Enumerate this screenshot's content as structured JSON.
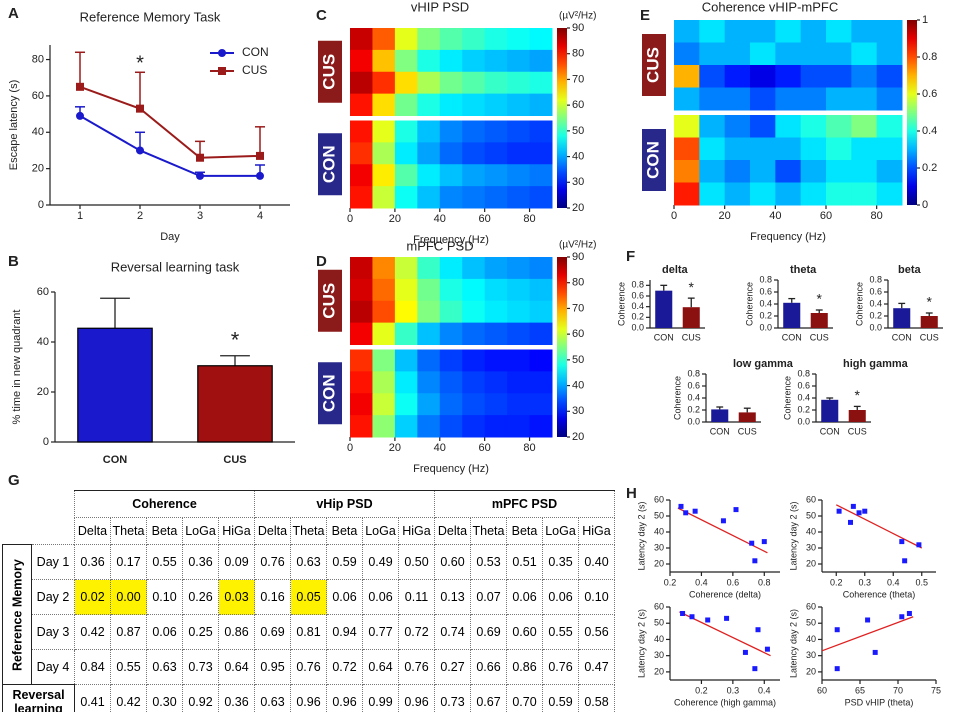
{
  "chart_data": [
    {
      "type": "line",
      "panel": "A",
      "title": "Reference Memory Task",
      "xlabel": "Day",
      "ylabel": "Escape latency (s)",
      "x": [
        1,
        2,
        3,
        4
      ],
      "xlim": [
        0.5,
        4.5
      ],
      "xticks": [
        1,
        2,
        3,
        4
      ],
      "ylim": [
        0,
        88
      ],
      "yticks": [
        0,
        20,
        40,
        60,
        80
      ],
      "legend": "upper right",
      "annotation": "*",
      "series": [
        {
          "name": "CON",
          "color": "#1a1acc",
          "marker": "circle",
          "values": [
            49,
            30,
            16,
            16
          ],
          "errors": [
            5,
            10,
            2,
            6
          ]
        },
        {
          "name": "CUS",
          "color": "#9b1b1b",
          "marker": "square",
          "values": [
            65,
            53,
            26,
            27
          ],
          "errors": [
            19,
            20,
            9,
            16
          ]
        }
      ]
    },
    {
      "type": "bar",
      "panel": "B",
      "title": "Reversal learning task",
      "ylabel": "% time in new quadrant",
      "categories": [
        "CON",
        "CUS"
      ],
      "values": [
        45.5,
        30.5
      ],
      "errors": [
        12,
        4
      ],
      "colors": [
        "#1a1acc",
        "#a01010"
      ],
      "edgecolor": "#000000",
      "ylim": [
        0,
        60
      ],
      "yticks": [
        0,
        20,
        40,
        60
      ],
      "annotation": "*"
    },
    {
      "type": "heatmap",
      "panel": "C",
      "title": "vHIP PSD",
      "xlabel": "Frequency (Hz)",
      "colormap": "jet",
      "clim": [
        20,
        90
      ],
      "cticks": [
        20,
        30,
        40,
        50,
        60,
        70,
        80,
        90
      ],
      "cbar_label": "(µV²/Hz)",
      "xlim": [
        0,
        90
      ],
      "xticks": [
        0,
        20,
        40,
        60,
        80
      ],
      "bins": [
        0,
        10,
        20,
        30,
        40,
        50,
        60,
        70,
        80,
        90
      ],
      "groups": [
        {
          "name": "CUS",
          "color": "#8b1a1a",
          "rows": [
            [
              85,
              75,
              62,
              55,
              52,
              50,
              48,
              47,
              46
            ],
            [
              82,
              68,
              55,
              48,
              45,
              43,
              42,
              41,
              40
            ],
            [
              86,
              78,
              66,
              58,
              54,
              52,
              50,
              49,
              48
            ],
            [
              80,
              66,
              54,
              48,
              45,
              44,
              43,
              42,
              41
            ]
          ]
        },
        {
          "name": "CON",
          "color": "#28288a",
          "rows": [
            [
              80,
              62,
              48,
              42,
              38,
              36,
              35,
              34,
              33
            ],
            [
              78,
              58,
              45,
              40,
              36,
              34,
              33,
              32,
              32
            ],
            [
              82,
              65,
              52,
              45,
              42,
              40,
              39,
              38,
              37
            ],
            [
              80,
              60,
              47,
              42,
              38,
              37,
              36,
              35,
              34
            ]
          ]
        }
      ]
    },
    {
      "type": "heatmap",
      "panel": "D",
      "title": "mPFC PSD",
      "xlabel": "Frequency (Hz)",
      "colormap": "jet",
      "clim": [
        20,
        90
      ],
      "cticks": [
        20,
        30,
        40,
        50,
        60,
        70,
        80,
        90
      ],
      "cbar_label": "(µV²/Hz)",
      "xlim": [
        0,
        90
      ],
      "xticks": [
        0,
        20,
        40,
        60,
        80
      ],
      "bins": [
        0,
        10,
        20,
        30,
        40,
        50,
        60,
        70,
        80,
        90
      ],
      "groups": [
        {
          "name": "CUS",
          "color": "#8b1a1a",
          "rows": [
            [
              85,
              72,
              60,
              50,
              45,
              42,
              40,
              39,
              38
            ],
            [
              84,
              74,
              62,
              54,
              48,
              46,
              44,
              43,
              42
            ],
            [
              86,
              76,
              64,
              55,
              50,
              47,
              45,
              44,
              43
            ],
            [
              82,
              62,
              50,
              42,
              38,
              36,
              35,
              34,
              33
            ]
          ]
        },
        {
          "name": "CON",
          "color": "#28288a",
          "rows": [
            [
              78,
              55,
              42,
              36,
              33,
              31,
              30,
              30,
              29
            ],
            [
              80,
              58,
              45,
              38,
              35,
              33,
              32,
              31,
              31
            ],
            [
              82,
              60,
              47,
              40,
              36,
              34,
              33,
              32,
              32
            ],
            [
              80,
              56,
              43,
              37,
              34,
              32,
              31,
              31,
              30
            ]
          ]
        }
      ]
    },
    {
      "type": "heatmap",
      "panel": "E",
      "title": "Coherence vHIP-mPFC",
      "xlabel": "Frequency (Hz)",
      "colormap": "jet",
      "clim": [
        0,
        1
      ],
      "cticks": [
        0,
        0.2,
        0.4,
        0.6,
        0.8,
        1
      ],
      "xlim": [
        0,
        90
      ],
      "xticks": [
        0,
        20,
        40,
        60,
        80
      ],
      "bins": [
        0,
        10,
        20,
        30,
        40,
        50,
        60,
        70,
        80,
        90
      ],
      "groups": [
        {
          "name": "CUS",
          "color": "#8b1a1a",
          "rows": [
            [
              0.3,
              0.35,
              0.3,
              0.3,
              0.35,
              0.3,
              0.35,
              0.3,
              0.3
            ],
            [
              0.25,
              0.3,
              0.3,
              0.35,
              0.3,
              0.3,
              0.3,
              0.35,
              0.3
            ],
            [
              0.7,
              0.2,
              0.15,
              0.1,
              0.15,
              0.2,
              0.2,
              0.25,
              0.2
            ],
            [
              0.3,
              0.25,
              0.25,
              0.2,
              0.25,
              0.25,
              0.3,
              0.3,
              0.25
            ]
          ]
        },
        {
          "name": "CON",
          "color": "#28288a",
          "rows": [
            [
              0.6,
              0.3,
              0.25,
              0.2,
              0.35,
              0.4,
              0.45,
              0.5,
              0.4
            ],
            [
              0.8,
              0.35,
              0.3,
              0.3,
              0.3,
              0.35,
              0.4,
              0.35,
              0.35
            ],
            [
              0.75,
              0.3,
              0.25,
              0.3,
              0.2,
              0.3,
              0.35,
              0.35,
              0.3
            ],
            [
              0.85,
              0.35,
              0.3,
              0.35,
              0.3,
              0.35,
              0.4,
              0.4,
              0.35
            ]
          ]
        }
      ]
    },
    {
      "type": "bar",
      "panel": "F",
      "title": "delta",
      "ylabel": "Coherence",
      "categories": [
        "CON",
        "CUS"
      ],
      "values": [
        0.7,
        0.39
      ],
      "errors": [
        0.1,
        0.17
      ],
      "colors": [
        "#1a1a99",
        "#8b1010"
      ],
      "ylim": [
        0,
        0.9
      ],
      "yticks": [
        {
          "value": 0,
          "label": "0.0"
        },
        0.2,
        0.4,
        0.6,
        0.8
      ],
      "annotation": "*"
    },
    {
      "type": "bar",
      "title": "theta",
      "ylabel": "Coherence",
      "categories": [
        "CON",
        "CUS"
      ],
      "values": [
        0.42,
        0.25
      ],
      "errors": [
        0.07,
        0.05
      ],
      "colors": [
        "#1a1a99",
        "#8b1010"
      ],
      "ylim": [
        0,
        0.8
      ],
      "yticks": [
        {
          "value": 0,
          "label": "0.0"
        },
        0.2,
        0.4,
        0.6,
        0.8
      ],
      "annotation": "*"
    },
    {
      "type": "bar",
      "title": "beta",
      "ylabel": "Coherence",
      "categories": [
        "CON",
        "CUS"
      ],
      "values": [
        0.33,
        0.2
      ],
      "errors": [
        0.08,
        0.05
      ],
      "colors": [
        "#1a1a99",
        "#8b1010"
      ],
      "ylim": [
        0,
        0.8
      ],
      "yticks": [
        {
          "value": 0,
          "label": "0.0"
        },
        0.2,
        0.4,
        0.6,
        0.8
      ],
      "annotation": "*"
    },
    {
      "type": "bar",
      "title": "low gamma",
      "ylabel": "Coherence",
      "categories": [
        "CON",
        "CUS"
      ],
      "values": [
        0.21,
        0.16
      ],
      "errors": [
        0.04,
        0.07
      ],
      "colors": [
        "#1a1a99",
        "#8b1010"
      ],
      "ylim": [
        0,
        0.8
      ],
      "yticks": [
        {
          "value": 0,
          "label": "0.0"
        },
        0.2,
        0.4,
        0.6,
        0.8
      ]
    },
    {
      "type": "bar",
      "title": "high gamma",
      "ylabel": "Coherence",
      "categories": [
        "CON",
        "CUS"
      ],
      "values": [
        0.37,
        0.2
      ],
      "errors": [
        0.03,
        0.06
      ],
      "colors": [
        "#1a1a99",
        "#8b1010"
      ],
      "ylim": [
        0,
        0.8
      ],
      "yticks": [
        {
          "value": 0,
          "label": "0.0"
        },
        0.2,
        0.4,
        0.6,
        0.8
      ],
      "annotation": "*"
    },
    {
      "type": "scatter",
      "panel": "H",
      "xlabel": "Coherence (delta)",
      "ylabel": "Latency day 2 (s)",
      "color": "#1a1aff",
      "fit_color": "#e02020",
      "x": [
        0.27,
        0.3,
        0.36,
        0.54,
        0.62,
        0.72,
        0.74,
        0.8
      ],
      "y": [
        56,
        52,
        53,
        47,
        54,
        33,
        22,
        34
      ],
      "fit": {
        "x": [
          0.25,
          0.82
        ],
        "y": [
          55,
          27
        ]
      },
      "xlim": [
        0.2,
        0.9
      ],
      "xticks": [
        0.2,
        0.4,
        0.6,
        0.8
      ],
      "ylim": [
        15,
        60
      ],
      "yticks": [
        20,
        30,
        40,
        50,
        60
      ]
    },
    {
      "type": "scatter",
      "xlabel": "Coherence (theta)",
      "ylabel": "Latency day 2 (s)",
      "color": "#1a1aff",
      "fit_color": "#e02020",
      "x": [
        0.21,
        0.25,
        0.26,
        0.28,
        0.3,
        0.43,
        0.44,
        0.49
      ],
      "y": [
        53,
        46,
        56,
        52,
        53,
        34,
        22,
        32
      ],
      "fit": {
        "x": [
          0.2,
          0.5
        ],
        "y": [
          57,
          30
        ]
      },
      "xlim": [
        0.15,
        0.55
      ],
      "xticks": [
        0.2,
        0.3,
        0.4,
        0.5
      ],
      "ylim": [
        15,
        60
      ],
      "yticks": [
        20,
        30,
        40,
        50,
        60
      ]
    },
    {
      "type": "scatter",
      "xlabel": "Coherence (high gamma)",
      "ylabel": "Latency day 2 (s)",
      "color": "#1a1aff",
      "fit_color": "#e02020",
      "x": [
        0.14,
        0.17,
        0.22,
        0.28,
        0.34,
        0.37,
        0.38,
        0.41
      ],
      "y": [
        56,
        54,
        52,
        53,
        32,
        22,
        46,
        34
      ],
      "fit": {
        "x": [
          0.13,
          0.42
        ],
        "y": [
          57,
          30
        ]
      },
      "xlim": [
        0.1,
        0.45
      ],
      "xticks": [
        0.2,
        0.3,
        0.4
      ],
      "ylim": [
        15,
        60
      ],
      "yticks": [
        20,
        30,
        40,
        50,
        60
      ]
    },
    {
      "type": "scatter",
      "xlabel": "PSD vHIP (theta)",
      "ylabel": "Latency day 2 (s)",
      "color": "#1a1aff",
      "fit_color": "#e02020",
      "x": [
        62,
        62,
        66,
        67,
        70.5,
        71.5
      ],
      "y": [
        46,
        22,
        52,
        32,
        54,
        56
      ],
      "fit": {
        "x": [
          60,
          72
        ],
        "y": [
          33,
          54
        ]
      },
      "xlim": [
        60,
        75
      ],
      "xticks": [
        60,
        65,
        70,
        75
      ],
      "ylim": [
        15,
        60
      ],
      "yticks": [
        20,
        30,
        40,
        50,
        60
      ]
    }
  ],
  "table": {
    "panel": "G",
    "groups": [
      "Coherence",
      "vHip PSD",
      "mPFC PSD"
    ],
    "columns": [
      "Delta",
      "Theta",
      "Beta",
      "LoGa",
      "HiGa"
    ],
    "row_group": "Reference Memory",
    "rows": [
      {
        "label": "Day 1",
        "cells": [
          "0.36",
          "0.17",
          "0.55",
          "0.36",
          "0.09",
          "0.76",
          "0.63",
          "0.59",
          "0.49",
          "0.50",
          "0.60",
          "0.53",
          "0.51",
          "0.35",
          "0.40"
        ]
      },
      {
        "label": "Day 2",
        "cells": [
          {
            "text": "0.02",
            "highlight": "#fff200"
          },
          {
            "text": "0.00",
            "highlight": "#fff200"
          },
          "0.10",
          "0.26",
          {
            "text": "0.03",
            "highlight": "#fff200"
          },
          "0.16",
          {
            "text": "0.05",
            "highlight": "#fff200"
          },
          "0.06",
          "0.06",
          "0.11",
          "0.13",
          "0.07",
          "0.06",
          "0.06",
          "0.10"
        ]
      },
      {
        "label": "Day 3",
        "cells": [
          "0.42",
          "0.87",
          "0.06",
          "0.25",
          "0.86",
          "0.69",
          "0.81",
          "0.94",
          "0.77",
          "0.72",
          "0.74",
          "0.69",
          "0.60",
          "0.55",
          "0.56"
        ]
      },
      {
        "label": "Day 4",
        "cells": [
          "0.84",
          "0.55",
          "0.63",
          "0.73",
          "0.64",
          "0.95",
          "0.76",
          "0.72",
          "0.64",
          "0.76",
          "0.27",
          "0.66",
          "0.86",
          "0.76",
          "0.47"
        ]
      },
      {
        "label": "Reversal learning",
        "cells": [
          "0.41",
          "0.42",
          "0.30",
          "0.92",
          "0.36",
          "0.63",
          "0.96",
          "0.96",
          "0.99",
          "0.96",
          "0.73",
          "0.67",
          "0.70",
          "0.59",
          "0.58"
        ],
        "own_group": true
      }
    ]
  }
}
